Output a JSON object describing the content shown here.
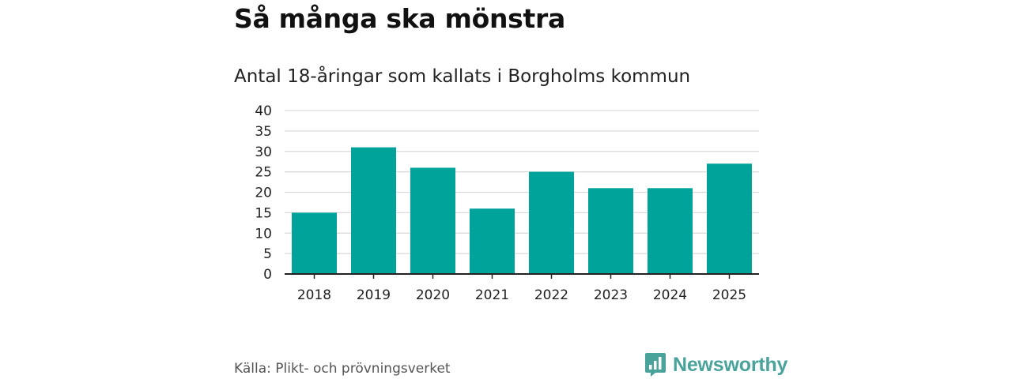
{
  "header": {
    "title": "Så många ska mönstra",
    "subtitle": "Antal 18-åringar som kallats i Borgholms kommun"
  },
  "footer": {
    "source": "Källa: Plikt- och prövningsverket",
    "brand": "Newsworthy"
  },
  "colors": {
    "bar": "#00a39a",
    "grid": "#d9d9d9",
    "axis": "#222222",
    "brand": "#4aa39a"
  },
  "chart_data": {
    "type": "bar",
    "categories": [
      "2018",
      "2019",
      "2020",
      "2021",
      "2022",
      "2023",
      "2024",
      "2025"
    ],
    "values": [
      15,
      31,
      26,
      16,
      25,
      21,
      21,
      27
    ],
    "ylim": [
      0,
      40
    ],
    "yticks": [
      0,
      5,
      10,
      15,
      20,
      25,
      30,
      35,
      40
    ],
    "grid": true
  }
}
